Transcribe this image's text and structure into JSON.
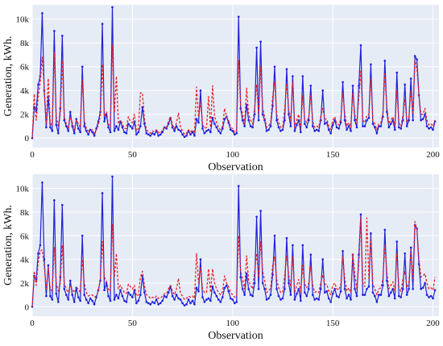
{
  "chart_data": [
    {
      "type": "line",
      "xlabel": "Observation",
      "ylabel": "Generation, kWh.",
      "xlim": [
        0,
        203
      ],
      "ylim": [
        -800,
        11200
      ],
      "xticks": [
        0,
        50,
        100,
        150,
        200
      ],
      "yticks": [
        0,
        2000,
        4000,
        6000,
        8000,
        10000
      ],
      "ytick_labels": [
        "0",
        "2k",
        "4k",
        "6k",
        "8k",
        "10k"
      ],
      "grid": true,
      "legend": "none",
      "colors": {
        "background": "#e5ecf6",
        "grid": "#ffffff",
        "actual": "#1f1fd6",
        "predicted": "#e8242a"
      },
      "series": [
        {
          "style": "solid-with-markers",
          "color": "#1f1fd6",
          "values": [
            0,
            2600,
            2300,
            4500,
            5200,
            10500,
            4000,
            900,
            3500,
            900,
            600,
            9000,
            1100,
            400,
            2500,
            8600,
            1500,
            1000,
            600,
            2200,
            1000,
            400,
            1600,
            800,
            500,
            6000,
            1000,
            600,
            300,
            700,
            500,
            200,
            800,
            1400,
            2200,
            9600,
            1400,
            2000,
            900,
            500,
            11000,
            600,
            1000,
            700,
            1400,
            900,
            500,
            400,
            1200,
            1000,
            800,
            1400,
            300,
            500,
            1000,
            2600,
            1200,
            400,
            300,
            200,
            400,
            300,
            600,
            200,
            300,
            500,
            900,
            800,
            1200,
            1700,
            900,
            600,
            1000,
            700,
            600,
            300,
            100,
            200,
            600,
            300,
            500,
            200,
            1600,
            1300,
            4000,
            800,
            400,
            600,
            700,
            500,
            1700,
            1200,
            900,
            600,
            400,
            800,
            1600,
            1800,
            1300,
            700,
            600,
            300,
            400,
            10200,
            2500,
            1500,
            1000,
            2800,
            1500,
            1000,
            900,
            2000,
            7600,
            1500,
            8100,
            2000,
            1500,
            600,
            700,
            1000,
            2700,
            6000,
            1500,
            900,
            600,
            700,
            1500,
            5800,
            2000,
            1000,
            5200,
            600,
            1100,
            1500,
            500,
            5200,
            1200,
            900,
            1500,
            4400,
            1000,
            600,
            700,
            600,
            1500,
            4000,
            1200,
            1300,
            700,
            400,
            1100,
            1500,
            900,
            800,
            1300,
            4700,
            1500,
            700,
            1000,
            600,
            4400,
            1500,
            900,
            4400,
            7800,
            1000,
            1000,
            1500,
            1700,
            6200,
            1200,
            900,
            400,
            1000,
            1000,
            1800,
            6500,
            2200,
            900,
            1200,
            1500,
            700,
            5500,
            900,
            800,
            1500,
            4500,
            1000,
            1500,
            5000,
            1500,
            6900,
            6600,
            3600,
            1500,
            1600,
            2000,
            1000,
            800,
            900,
            700,
            1400
          ],
          "values_bottom": [
            0,
            2600,
            2300,
            4500,
            5200,
            10500,
            4000,
            900,
            3500,
            900,
            600,
            9000,
            1100,
            400,
            2500,
            8600,
            1500,
            1000,
            600,
            2200,
            1000,
            400,
            1600,
            800,
            500,
            6000,
            1000,
            600,
            300,
            700,
            500,
            200,
            800,
            1400,
            2200,
            9600,
            1400,
            2000,
            900,
            500,
            11000,
            600,
            1000,
            700,
            1400,
            900,
            500,
            400,
            1200,
            1000,
            800,
            1400,
            300,
            500,
            1000,
            2600,
            1200,
            400,
            300,
            200,
            400,
            300,
            600,
            200,
            300,
            500,
            900,
            800,
            1200,
            1700,
            900,
            600,
            1000,
            700,
            600,
            300,
            100,
            200,
            600,
            300,
            500,
            200,
            1600,
            1300,
            4000,
            800,
            400,
            600,
            700,
            500,
            1700,
            1200,
            900,
            600,
            400,
            800,
            1600,
            1800,
            1300,
            700,
            600,
            300,
            400,
            10200,
            2500,
            1500,
            1000,
            2800,
            1500,
            1000,
            900,
            2000,
            7600,
            1500,
            8100,
            2000,
            1500,
            600,
            700,
            1000,
            2700,
            6000,
            1500,
            900,
            600,
            700,
            1500,
            5800,
            2000,
            1000,
            5200,
            600,
            1100,
            1500,
            500,
            5200,
            1200,
            900,
            1500,
            4400,
            1000,
            600,
            700,
            600,
            1500,
            4000,
            1200,
            1300,
            700,
            400,
            1100,
            1500,
            900,
            800,
            1300,
            4700,
            1500,
            700,
            1000,
            600,
            4400,
            1500,
            900,
            4400,
            7800,
            1000,
            1000,
            1500,
            1700,
            6200,
            1200,
            900,
            400,
            1000,
            1000,
            1800,
            6500,
            2200,
            900,
            1200,
            1500,
            700,
            5500,
            900,
            800,
            1500,
            4500,
            1000,
            1500,
            5000,
            1500,
            6900,
            6600,
            3600,
            1500,
            1600,
            2000,
            1000,
            800,
            900,
            700,
            1400
          ]
        },
        {
          "style": "dashed",
          "color": "#e8242a",
          "values": [
            0,
            3700,
            1500,
            3500,
            4700,
            6800,
            4200,
            1200,
            5000,
            1300,
            1000,
            7200,
            1800,
            1000,
            2000,
            6500,
            1800,
            1200,
            800,
            1800,
            1300,
            700,
            1500,
            1200,
            900,
            4900,
            1500,
            800,
            600,
            600,
            700,
            400,
            700,
            1100,
            1900,
            6200,
            1800,
            2200,
            1200,
            900,
            7800,
            2200,
            5200,
            1200,
            1500,
            1200,
            800,
            800,
            1800,
            1400,
            1300,
            2000,
            600,
            800,
            3800,
            3800,
            1600,
            700,
            500,
            400,
            600,
            500,
            700,
            500,
            400,
            700,
            900,
            900,
            1400,
            1800,
            1100,
            800,
            1300,
            2100,
            900,
            600,
            300,
            400,
            700,
            500,
            700,
            400,
            4300,
            1800,
            3000,
            1200,
            800,
            900,
            3500,
            900,
            4400,
            1800,
            1300,
            900,
            700,
            1000,
            2500,
            1800,
            1500,
            900,
            800,
            500,
            600,
            6500,
            2700,
            2000,
            1200,
            4200,
            2000,
            1500,
            1200,
            2500,
            4500,
            2000,
            6000,
            2500,
            1800,
            900,
            1000,
            1300,
            3500,
            4700,
            2000,
            1300,
            900,
            900,
            2500,
            4600,
            2400,
            1400,
            4700,
            900,
            1500,
            2000,
            800,
            3600,
            1600,
            1300,
            1800,
            3600,
            1400,
            900,
            1000,
            900,
            1800,
            2500,
            1600,
            1600,
            1000,
            700,
            1500,
            1800,
            1200,
            1100,
            1600,
            3800,
            2000,
            1000,
            1300,
            900,
            3800,
            2000,
            1200,
            3400,
            5700,
            1500,
            1300,
            1900,
            2000,
            5000,
            1500,
            1200,
            700,
            1200,
            1300,
            2000,
            5400,
            2600,
            1200,
            1500,
            1800,
            1000,
            4000,
            1300,
            1000,
            1900,
            3300,
            1300,
            1800,
            4000,
            2000,
            6600,
            5800,
            3600,
            2000,
            2000,
            2500,
            1500,
            1100,
            1200,
            1000,
            1500
          ],
          "values_bottom": [
            0,
            3000,
            1800,
            3800,
            4700,
            4800,
            3500,
            1500,
            3300,
            1500,
            1300,
            5000,
            2000,
            1300,
            2000,
            5200,
            2000,
            1500,
            1200,
            1800,
            1500,
            1200,
            1600,
            1500,
            1200,
            4000,
            2000,
            1200,
            900,
            1000,
            1000,
            800,
            900,
            1300,
            2400,
            5500,
            2500,
            2200,
            1500,
            1300,
            7000,
            2500,
            4500,
            1500,
            1800,
            1500,
            1200,
            1100,
            1900,
            1700,
            1500,
            1800,
            900,
            1000,
            2500,
            3000,
            1800,
            1000,
            900,
            700,
            800,
            700,
            900,
            700,
            700,
            900,
            1100,
            1100,
            1500,
            1800,
            1300,
            1000,
            1500,
            2400,
            1100,
            900,
            600,
            700,
            900,
            800,
            900,
            700,
            4500,
            2000,
            3300,
            1500,
            1200,
            1200,
            3200,
            1200,
            3200,
            2000,
            1500,
            1200,
            1000,
            1300,
            2600,
            2000,
            1700,
            1200,
            1000,
            800,
            900,
            6000,
            3000,
            2300,
            1500,
            4300,
            2200,
            1800,
            1500,
            3000,
            4500,
            2500,
            5500,
            3000,
            2200,
            1200,
            1300,
            1600,
            3500,
            4200,
            2300,
            1600,
            1200,
            1200,
            2700,
            4300,
            2700,
            1700,
            4200,
            1200,
            1800,
            2300,
            1200,
            3500,
            1900,
            1600,
            2000,
            3400,
            1800,
            1200,
            1300,
            1200,
            2000,
            2700,
            1900,
            1900,
            1300,
            1000,
            1800,
            2000,
            1500,
            1400,
            1900,
            4200,
            2300,
            1300,
            1600,
            1200,
            4500,
            2700,
            1500,
            3600,
            7500,
            2000,
            1700,
            7500,
            2400,
            5800,
            1900,
            1500,
            1000,
            1500,
            1600,
            2300,
            5200,
            2900,
            1500,
            1800,
            2100,
            1300,
            4500,
            1600,
            1300,
            2300,
            3000,
            1600,
            2100,
            4800,
            2400,
            7200,
            6500,
            4000,
            2500,
            2600,
            2800,
            2000,
            1500,
            1600,
            1400,
            2500
          ]
        }
      ]
    }
  ]
}
